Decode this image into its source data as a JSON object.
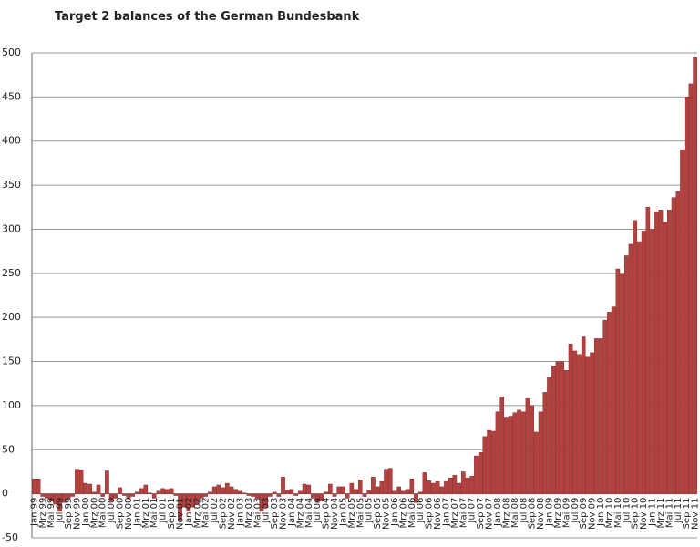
{
  "chart_data": {
    "type": "bar",
    "title": "Target 2 balances of the German Bundesbank",
    "categories": [
      "Jan 99",
      null,
      "Mrz 99",
      null,
      "Mai 99",
      null,
      "Jul 99",
      null,
      "Sep 99",
      null,
      "Nov 99",
      null,
      "Jan 00",
      null,
      "Mrz 00",
      null,
      "Mai 00",
      null,
      "Jul 00",
      null,
      "Sep 00",
      null,
      "Nov 00",
      null,
      "Jan 01",
      null,
      "Mrz 01",
      null,
      "Mai 01",
      null,
      "Jul 01",
      null,
      "Sep 01",
      null,
      "Nov 01",
      null,
      "Jan 02",
      null,
      "Mrz 02",
      null,
      "Mai 02",
      null,
      "Jul 02",
      null,
      "Sep 02",
      null,
      "Nov 02",
      null,
      "Jan 03",
      null,
      "Mrz 03",
      null,
      "Mai 03",
      null,
      "Jul 03",
      null,
      "Sep 03",
      null,
      "Nov 03",
      null,
      "Jan 04",
      null,
      "Mrz 04",
      null,
      "Mai 04",
      null,
      "Jul 04",
      null,
      "Sep 04",
      null,
      "Nov 04",
      null,
      "Jan 05",
      null,
      "Mrz 05",
      null,
      "Mai 05",
      null,
      "Jul 05",
      null,
      "Sep 05",
      null,
      "Nov 05",
      null,
      "Jan 06",
      null,
      "Mrz 06",
      null,
      "Mai 06",
      null,
      "Jul 06",
      null,
      "Sep 06",
      null,
      "Nov 06",
      null,
      "Jan 07",
      null,
      "Mrz 07",
      null,
      "Mai 07",
      null,
      "Jul 07",
      null,
      "Sep 07",
      null,
      "Nov 07",
      null,
      "Jan 08",
      null,
      "Mrz 08",
      null,
      "Mai 08",
      null,
      "Jul 08",
      null,
      "Sep 08",
      null,
      "Nov 08",
      null,
      "Jan 09",
      null,
      "Mrz 09",
      null,
      "Mai 09",
      null,
      "Jul 09",
      null,
      "Sep 09",
      null,
      "Nov 09",
      null,
      "Jan 10",
      null,
      "Mrz 10",
      null,
      "Mai 10",
      null,
      "Jul 10",
      null,
      "Sep 10",
      null,
      "Nov 10",
      null,
      "Jan 11",
      null,
      "Mrz 11",
      null,
      "Mai 11",
      null,
      "Jul 11",
      null,
      "Sep 11",
      null,
      "Nov 11"
    ],
    "values": [
      17,
      17,
      -3,
      -5,
      -8,
      -12,
      -20,
      -10,
      -5,
      -3,
      28,
      27,
      12,
      11,
      2,
      10,
      -3,
      26,
      -8,
      -5,
      7,
      -2,
      -5,
      -3,
      2,
      6,
      10,
      1,
      -5,
      3,
      6,
      5,
      6,
      -2,
      -30,
      -15,
      -20,
      -15,
      -12,
      -5,
      -3,
      2,
      8,
      10,
      7,
      12,
      8,
      5,
      3,
      1,
      -2,
      -3,
      -5,
      -20,
      -15,
      -3,
      2,
      -3,
      19,
      4,
      5,
      -2,
      3,
      11,
      10,
      -5,
      -10,
      -8,
      2,
      11,
      -3,
      8,
      8,
      -5,
      12,
      5,
      16,
      -3,
      4,
      19,
      8,
      14,
      28,
      29,
      3,
      8,
      3,
      5,
      17,
      -10,
      2,
      24,
      15,
      12,
      14,
      8,
      14,
      18,
      21,
      12,
      25,
      18,
      20,
      43,
      47,
      65,
      72,
      71,
      93,
      110,
      87,
      88,
      92,
      95,
      93,
      108,
      100,
      70,
      93,
      115,
      132,
      145,
      150,
      150,
      140,
      170,
      162,
      158,
      178,
      155,
      160,
      176,
      176,
      197,
      206,
      212,
      255,
      250,
      270,
      283,
      310,
      286,
      298,
      325,
      300,
      320,
      322,
      308,
      322,
      336,
      343,
      390,
      450,
      465,
      495
    ],
    "color": "#b5413f",
    "ylim": [
      -50,
      500
    ],
    "yticks": [
      -50,
      0,
      50,
      100,
      150,
      200,
      250,
      300,
      350,
      400,
      450,
      500
    ],
    "grid": true
  }
}
